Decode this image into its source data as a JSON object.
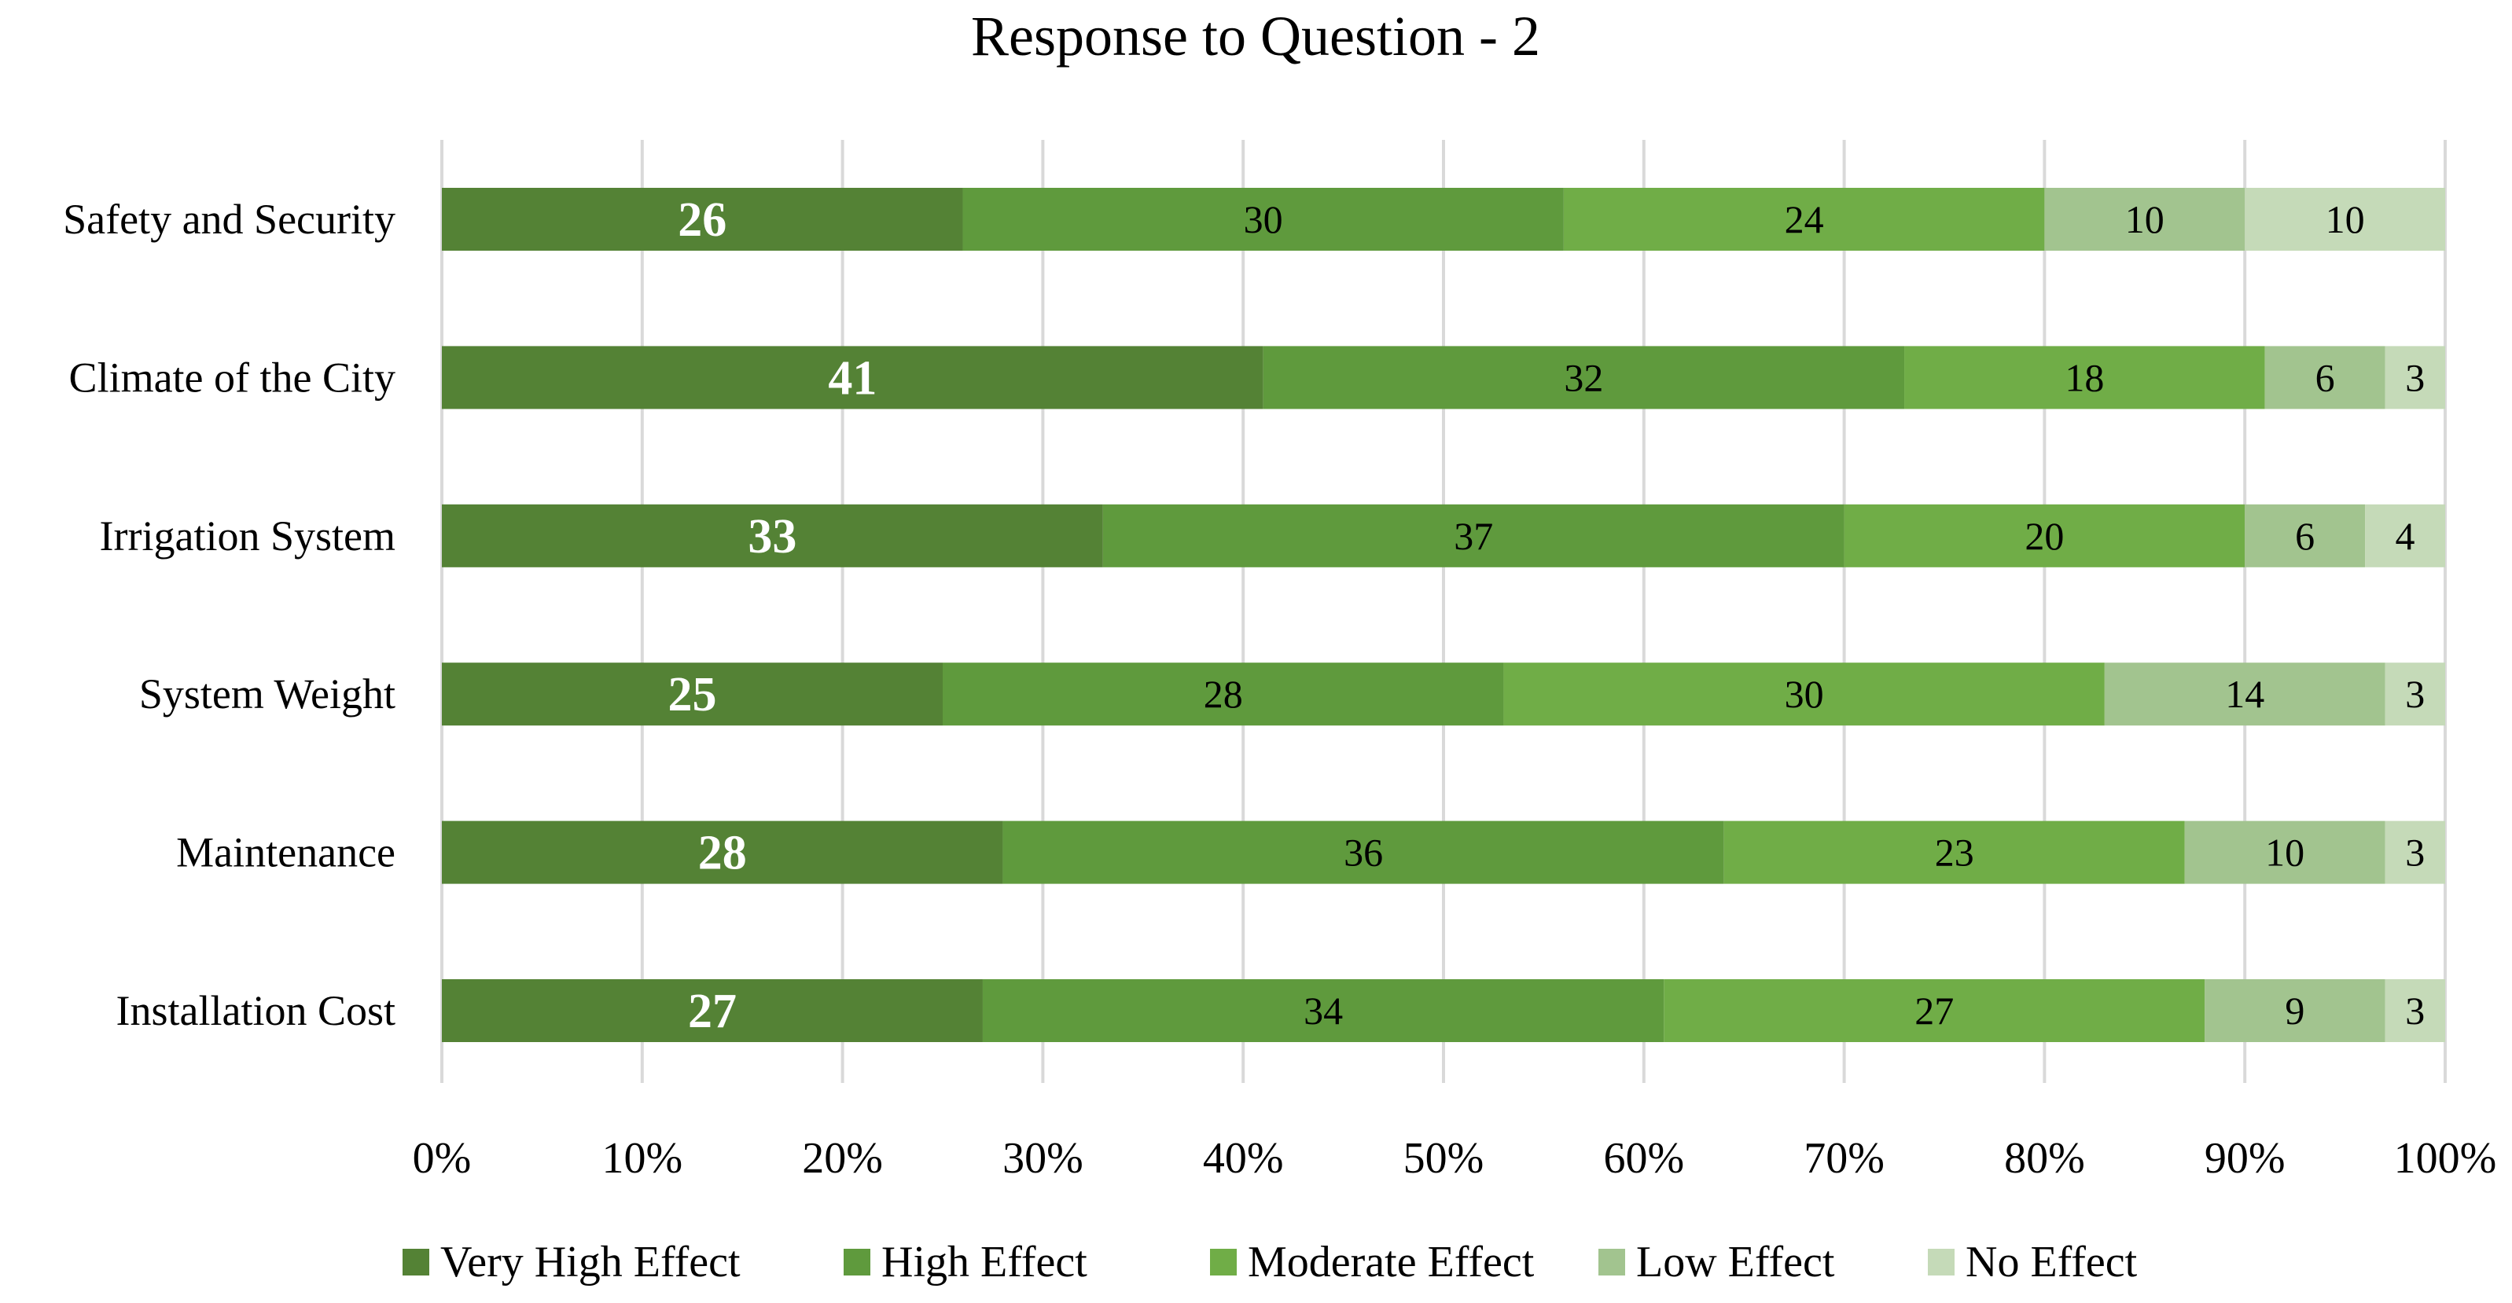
{
  "chart_data": {
    "type": "bar",
    "orientation": "horizontal",
    "stacking": "percent",
    "title": "Response to Question - 2",
    "categories": [
      "Safety and Security",
      "Climate of the City",
      "Irrigation System",
      "System Weight",
      "Maintenance",
      "Installation Cost"
    ],
    "series": [
      {
        "name": "Very High Effect",
        "color": "#548235",
        "values": [
          26,
          41,
          33,
          25,
          28,
          27
        ]
      },
      {
        "name": "High Effect",
        "color": "#5f9a3d",
        "values": [
          30,
          32,
          37,
          28,
          36,
          34
        ]
      },
      {
        "name": "Moderate Effect",
        "color": "#70ad47",
        "values": [
          24,
          18,
          20,
          30,
          23,
          27
        ]
      },
      {
        "name": "Low Effect",
        "color": "#a2c48f",
        "values": [
          10,
          6,
          6,
          14,
          10,
          9
        ]
      },
      {
        "name": "No Effect",
        "color": "#c5dab8",
        "values": [
          10,
          3,
          4,
          3,
          3,
          3
        ]
      }
    ],
    "xlim": [
      0,
      100
    ],
    "x_ticks": [
      "0%",
      "10%",
      "20%",
      "30%",
      "40%",
      "50%",
      "60%",
      "70%",
      "80%",
      "90%",
      "100%"
    ],
    "grid": "vertical",
    "legend_position": "bottom"
  }
}
